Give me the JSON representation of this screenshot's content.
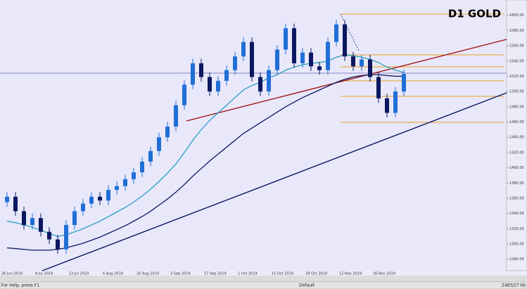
{
  "chart_data": {
    "type": "candlestick",
    "title": "D1 GOLD",
    "categories": [
      "26 Jun 2019",
      null,
      null,
      null,
      "8 Jul 2019",
      null,
      null,
      null,
      "23 Jul 2019",
      null,
      null,
      null,
      "6 Aug 2019",
      null,
      null,
      null,
      "20 Aug 2019",
      null,
      null,
      null,
      "3 Sep 2019",
      null,
      null,
      null,
      "17 Sep 2019",
      null,
      null,
      null,
      "1 Oct 2019",
      null,
      null,
      null,
      "15 Oct 2019",
      null,
      null,
      null,
      "29 Oct 2019",
      null,
      null,
      null,
      "12 Nov 2019",
      null,
      null,
      null,
      "26 Nov 2019",
      null,
      null,
      null
    ],
    "open": [
      1355,
      1362,
      1343,
      1325,
      1334,
      1316,
      1306,
      1293,
      1325,
      1343,
      1353,
      1362,
      1357,
      1371,
      1376,
      1385,
      1394,
      1408,
      1422,
      1440,
      1454,
      1482,
      1509,
      1537,
      1519,
      1500,
      1514,
      1528,
      1546,
      1565,
      1519,
      1500,
      1528,
      1555,
      1583,
      1537,
      1551,
      1533,
      1528,
      1565,
      1588,
      1546,
      1533,
      1542,
      1519,
      1491,
      1472,
      1500
    ],
    "high": [
      1368,
      1368,
      1349,
      1340,
      1340,
      1322,
      1312,
      1331,
      1349,
      1359,
      1368,
      1368,
      1377,
      1382,
      1391,
      1400,
      1414,
      1428,
      1446,
      1460,
      1488,
      1515,
      1543,
      1543,
      1525,
      1520,
      1534,
      1552,
      1571,
      1571,
      1525,
      1534,
      1561,
      1589,
      1589,
      1557,
      1557,
      1539,
      1571,
      1594,
      1594,
      1552,
      1548,
      1548,
      1525,
      1497,
      1506,
      1529
    ],
    "low": [
      1349,
      1337,
      1319,
      1319,
      1310,
      1300,
      1287,
      1287,
      1319,
      1337,
      1347,
      1351,
      1351,
      1365,
      1370,
      1379,
      1388,
      1402,
      1416,
      1434,
      1448,
      1476,
      1503,
      1513,
      1494,
      1494,
      1508,
      1522,
      1540,
      1513,
      1494,
      1494,
      1522,
      1549,
      1531,
      1531,
      1527,
      1522,
      1522,
      1559,
      1540,
      1527,
      1527,
      1513,
      1485,
      1466,
      1466,
      1494
    ],
    "close": [
      1362,
      1343,
      1325,
      1334,
      1316,
      1306,
      1293,
      1325,
      1343,
      1353,
      1362,
      1357,
      1371,
      1376,
      1385,
      1394,
      1408,
      1422,
      1440,
      1454,
      1482,
      1509,
      1537,
      1519,
      1500,
      1514,
      1528,
      1546,
      1565,
      1519,
      1500,
      1528,
      1555,
      1583,
      1537,
      1551,
      1533,
      1528,
      1565,
      1588,
      1546,
      1533,
      1542,
      1519,
      1491,
      1472,
      1500,
      1523
    ],
    "up_color": "#1f6fd6",
    "down_color": "#0b1760",
    "series": [
      {
        "color": "#2aa0c0",
        "values": [
          1330,
          1328,
          1325,
          1322,
          1318,
          1314,
          1310,
          1312,
          1316,
          1320,
          1325,
          1330,
          1336,
          1342,
          1348,
          1355,
          1363,
          1372,
          1382,
          1393,
          1405,
          1420,
          1436,
          1450,
          1462,
          1472,
          1482,
          1492,
          1502,
          1508,
          1512,
          1518,
          1522,
          1528,
          1532,
          1535,
          1537,
          1538,
          1540,
          1545,
          1548,
          1547,
          1545,
          1542,
          1538,
          1532,
          1528,
          1525
        ]
      },
      {
        "color": "#0b1760",
        "values": [
          1295,
          1294,
          1293,
          1292,
          1292,
          1292,
          1293,
          1295,
          1298,
          1301,
          1305,
          1309,
          1314,
          1319,
          1324,
          1330,
          1336,
          1343,
          1351,
          1359,
          1368,
          1378,
          1389,
          1399,
          1409,
          1418,
          1427,
          1436,
          1445,
          1452,
          1459,
          1466,
          1473,
          1480,
          1486,
          1492,
          1497,
          1502,
          1507,
          1512,
          1516,
          1519,
          1521,
          1522,
          1522,
          1521,
          1520,
          1520
        ]
      }
    ],
    "ylim": [
      1265,
      1620
    ],
    "yticks": [
      {
        "value": 1280,
        "label": "1280.00"
      },
      {
        "value": 1300,
        "label": "1300.00"
      },
      {
        "value": 1320,
        "label": "1320.00"
      },
      {
        "value": 1340,
        "label": "1340.00"
      },
      {
        "value": 1360,
        "label": "1360.00"
      },
      {
        "value": 1380,
        "label": "1380.00"
      },
      {
        "value": 1400,
        "label": "1400.00"
      },
      {
        "value": 1420,
        "label": "1420.00"
      },
      {
        "value": 1440,
        "label": "1440.00"
      },
      {
        "value": 1460,
        "label": "1460.00"
      },
      {
        "value": 1480,
        "label": "1480.00"
      },
      {
        "value": 1500,
        "label": "1500.00"
      },
      {
        "value": 1520,
        "label": "1520.00"
      },
      {
        "value": 1540,
        "label": "1540.00"
      },
      {
        "value": 1560,
        "label": "1560.00"
      },
      {
        "value": 1580,
        "label": "1580.00"
      },
      {
        "value": 1600,
        "label": "1600.00"
      }
    ]
  },
  "status": {
    "help": "For Help, press F1",
    "profile": "Default",
    "traffic": "2483/27 kb"
  }
}
